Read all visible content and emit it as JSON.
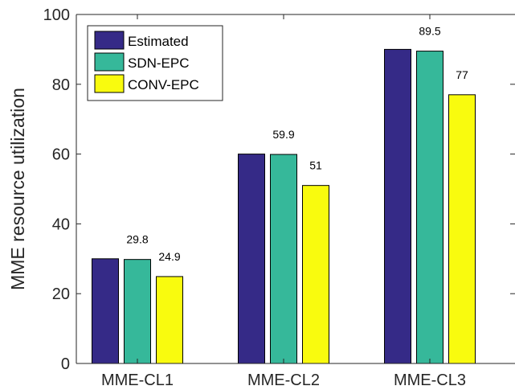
{
  "chart_data": {
    "type": "bar",
    "title": "",
    "xlabel": "",
    "ylabel": "MME resource utilization",
    "ylim": [
      0,
      100
    ],
    "yticks": [
      0,
      20,
      40,
      60,
      80,
      100
    ],
    "grid": false,
    "legend_position": "top-left",
    "categories": [
      "MME-CL1",
      "MME-CL2",
      "MME-CL3"
    ],
    "series": [
      {
        "name": "Estimated",
        "color": "#352a87",
        "values": [
          30,
          60,
          90
        ]
      },
      {
        "name": "SDN-EPC",
        "color": "#36b89a",
        "values": [
          29.8,
          59.9,
          89.5
        ]
      },
      {
        "name": "CONV-EPC",
        "color": "#f9fb0e",
        "values": [
          24.9,
          51,
          77
        ]
      }
    ],
    "data_labels": [
      {
        "series": 1,
        "category": 0,
        "text": "29.8"
      },
      {
        "series": 2,
        "category": 0,
        "text": "24.9"
      },
      {
        "series": 1,
        "category": 1,
        "text": "59.9"
      },
      {
        "series": 2,
        "category": 1,
        "text": "51"
      },
      {
        "series": 1,
        "category": 2,
        "text": "89.5"
      },
      {
        "series": 2,
        "category": 2,
        "text": "77"
      }
    ]
  }
}
